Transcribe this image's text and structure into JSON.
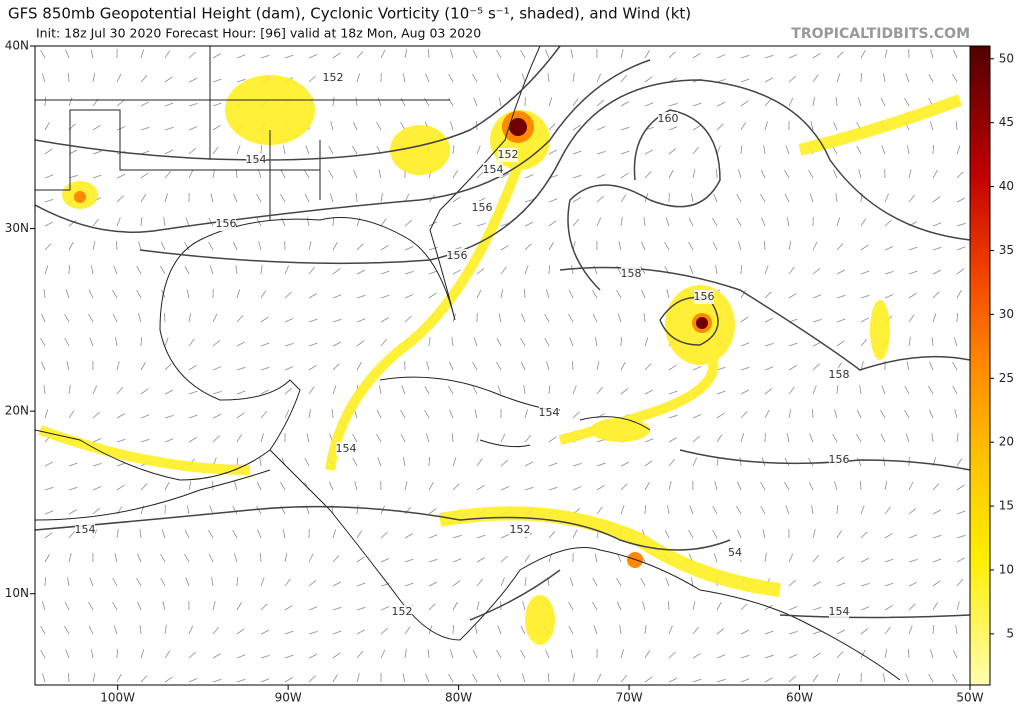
{
  "map": {
    "title": "GFS 850mb Geopotential Height (dam), Cyclonic Vorticity (10⁻⁵ s⁻¹, shaded), and Wind (kt)",
    "subtitle": "Init: 18z Jul 30 2020   Forecast Hour: [96]   valid at 18z Mon, Aug 03 2020",
    "watermark": "TROPICALTIDBITS.COM",
    "lonlim": [
      -104.85,
      -50
    ],
    "latlim": [
      5,
      40
    ],
    "lon_ticks": [
      {
        "value": -100,
        "label": "100W"
      },
      {
        "value": -90,
        "label": "90W"
      },
      {
        "value": -80,
        "label": "80W"
      },
      {
        "value": -70,
        "label": "70W"
      },
      {
        "value": -60,
        "label": "60W"
      },
      {
        "value": -50,
        "label": "50W"
      }
    ],
    "lat_ticks": [
      {
        "value": 40,
        "label": "40N"
      },
      {
        "value": 30,
        "label": "30N"
      },
      {
        "value": 20,
        "label": "20N"
      },
      {
        "value": 10,
        "label": "10N"
      }
    ],
    "contour_labels": [
      "152",
      "154",
      "152",
      "154",
      "156",
      "156",
      "156",
      "160",
      "158",
      "156",
      "158",
      "154",
      "154",
      "156",
      "154",
      "152",
      "54",
      "152",
      "154"
    ],
    "colorbar": {
      "lim": [
        1,
        51
      ],
      "ticks": [
        5,
        10,
        15,
        20,
        25,
        30,
        35,
        40,
        45,
        50
      ]
    }
  }
}
